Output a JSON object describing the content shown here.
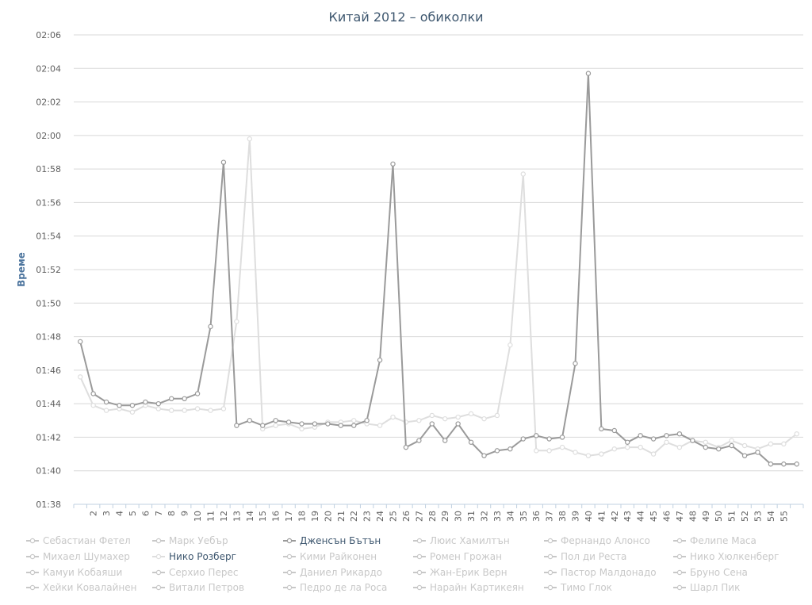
{
  "chart_data": {
    "type": "line",
    "title": "Китай 2012 – обиколки",
    "ylabel": "Време",
    "xlabel": "",
    "y_ticks": [
      "01:38",
      "01:40",
      "01:42",
      "01:44",
      "01:46",
      "01:48",
      "01:50",
      "01:52",
      "01:54",
      "01:56",
      "01:58",
      "02:00",
      "02:02",
      "02:04",
      "02:06"
    ],
    "ylim": [
      "01:38",
      "02:06"
    ],
    "x_labels": [
      "",
      "2",
      "3",
      "4",
      "5",
      "6",
      "7",
      "8",
      "9",
      "10",
      "11",
      "12",
      "13",
      "14",
      "15",
      "16",
      "17",
      "18",
      "19",
      "20",
      "21",
      "22",
      "23",
      "24",
      "25",
      "26",
      "27",
      "28",
      "29",
      "30",
      "31",
      "32",
      "33",
      "34",
      "35",
      "36",
      "37",
      "38",
      "39",
      "40",
      "41",
      "42",
      "43",
      "44",
      "45",
      "46",
      "47",
      "48",
      "49",
      "50",
      "51",
      "52",
      "53",
      "54",
      "55",
      ""
    ],
    "grid": true,
    "legend_position": "bottom",
    "series": [
      {
        "name": "Дженсън Бътън",
        "color": "#9a9a9a",
        "values": [
          "01:47.7",
          "01:44.6",
          "01:44.1",
          "01:43.9",
          "01:43.9",
          "01:44.1",
          "01:44.0",
          "01:44.3",
          "01:44.3",
          "01:44.6",
          "01:48.6",
          "01:58.4",
          "01:42.7",
          "01:43.0",
          "01:42.7",
          "01:43.0",
          "01:42.9",
          "01:42.8",
          "01:42.8",
          "01:42.8",
          "01:42.7",
          "01:42.7",
          "01:43.0",
          "01:46.6",
          "01:58.3",
          "01:41.4",
          "01:41.8",
          "01:42.8",
          "01:41.8",
          "01:42.8",
          "01:41.7",
          "01:40.9",
          "01:41.2",
          "01:41.3",
          "01:41.9",
          "01:42.1",
          "01:41.9",
          "01:42.0",
          "01:46.4",
          "02:03.7",
          "01:42.5",
          "01:42.4",
          "01:41.7",
          "01:42.1",
          "01:41.9",
          "01:42.1",
          "01:42.2",
          "01:41.8",
          "01:41.4",
          "01:41.3",
          "01:41.5",
          "01:40.9",
          "01:41.1",
          "01:40.4",
          "01:40.4",
          "01:40.4"
        ]
      },
      {
        "name": "Нико Розберг",
        "color": "#dedede",
        "values": [
          "01:45.6",
          "01:43.9",
          "01:43.6",
          "01:43.7",
          "01:43.5",
          "01:43.9",
          "01:43.7",
          "01:43.6",
          "01:43.6",
          "01:43.7",
          "01:43.6",
          "01:43.7",
          "01:48.9",
          "01:59.8",
          "01:42.5",
          "01:42.7",
          "01:42.8",
          "01:42.5",
          "01:42.6",
          "01:42.9",
          "01:42.9",
          "01:43.0",
          "01:42.8",
          "01:42.7",
          "01:43.2",
          "01:42.9",
          "01:43.0",
          "01:43.3",
          "01:43.1",
          "01:43.2",
          "01:43.4",
          "01:43.1",
          "01:43.3",
          "01:47.5",
          "01:57.7",
          "01:41.2",
          "01:41.2",
          "01:41.4",
          "01:41.1",
          "01:40.9",
          "01:41.0",
          "01:41.3",
          "01:41.4",
          "01:41.4",
          "01:41.0",
          "01:41.7",
          "01:41.4",
          "01:41.8",
          "01:41.7",
          "01:41.4",
          "01:41.8",
          "01:41.5",
          "01:41.3",
          "01:41.6",
          "01:41.6",
          "01:42.2"
        ]
      }
    ]
  },
  "legend": {
    "items": [
      {
        "label": "Себастиан Фетел",
        "color": "#c8c8c8",
        "active": false
      },
      {
        "label": "Марк Уебър",
        "color": "#c8c8c8",
        "active": false
      },
      {
        "label": "Дженсън Бътън",
        "color": "#9a9a9a",
        "active": true
      },
      {
        "label": "Люис Хамилтън",
        "color": "#c8c8c8",
        "active": false
      },
      {
        "label": "Фернандо Алонсо",
        "color": "#c8c8c8",
        "active": false
      },
      {
        "label": "Фелипе Маса",
        "color": "#c8c8c8",
        "active": false
      },
      {
        "label": "Михаел Шумахер",
        "color": "#c8c8c8",
        "active": false
      },
      {
        "label": "Нико Розберг",
        "color": "#dedede",
        "active": true
      },
      {
        "label": "Кими Райконен",
        "color": "#c8c8c8",
        "active": false
      },
      {
        "label": "Ромен Грожан",
        "color": "#c8c8c8",
        "active": false
      },
      {
        "label": "Пол ди Реста",
        "color": "#c8c8c8",
        "active": false
      },
      {
        "label": "Нико Хюлкенберг",
        "color": "#c8c8c8",
        "active": false
      },
      {
        "label": "Камуи Кобаяши",
        "color": "#c8c8c8",
        "active": false
      },
      {
        "label": "Серхио Перес",
        "color": "#c8c8c8",
        "active": false
      },
      {
        "label": "Даниел Рикардо",
        "color": "#c8c8c8",
        "active": false
      },
      {
        "label": "Жан-Ерик Верн",
        "color": "#c8c8c8",
        "active": false
      },
      {
        "label": "Пастор Малдонадо",
        "color": "#c8c8c8",
        "active": false
      },
      {
        "label": "Бруно Сена",
        "color": "#c8c8c8",
        "active": false
      },
      {
        "label": "Хейки Ковалайнен",
        "color": "#c8c8c8",
        "active": false
      },
      {
        "label": "Витали Петров",
        "color": "#c8c8c8",
        "active": false
      },
      {
        "label": "Педро де ла Роса",
        "color": "#c8c8c8",
        "active": false
      },
      {
        "label": "Нарайн Картикеян",
        "color": "#c8c8c8",
        "active": false
      },
      {
        "label": "Тимо Глок",
        "color": "#c8c8c8",
        "active": false
      },
      {
        "label": "Шарл Пик",
        "color": "#c8c8c8",
        "active": false
      }
    ]
  }
}
